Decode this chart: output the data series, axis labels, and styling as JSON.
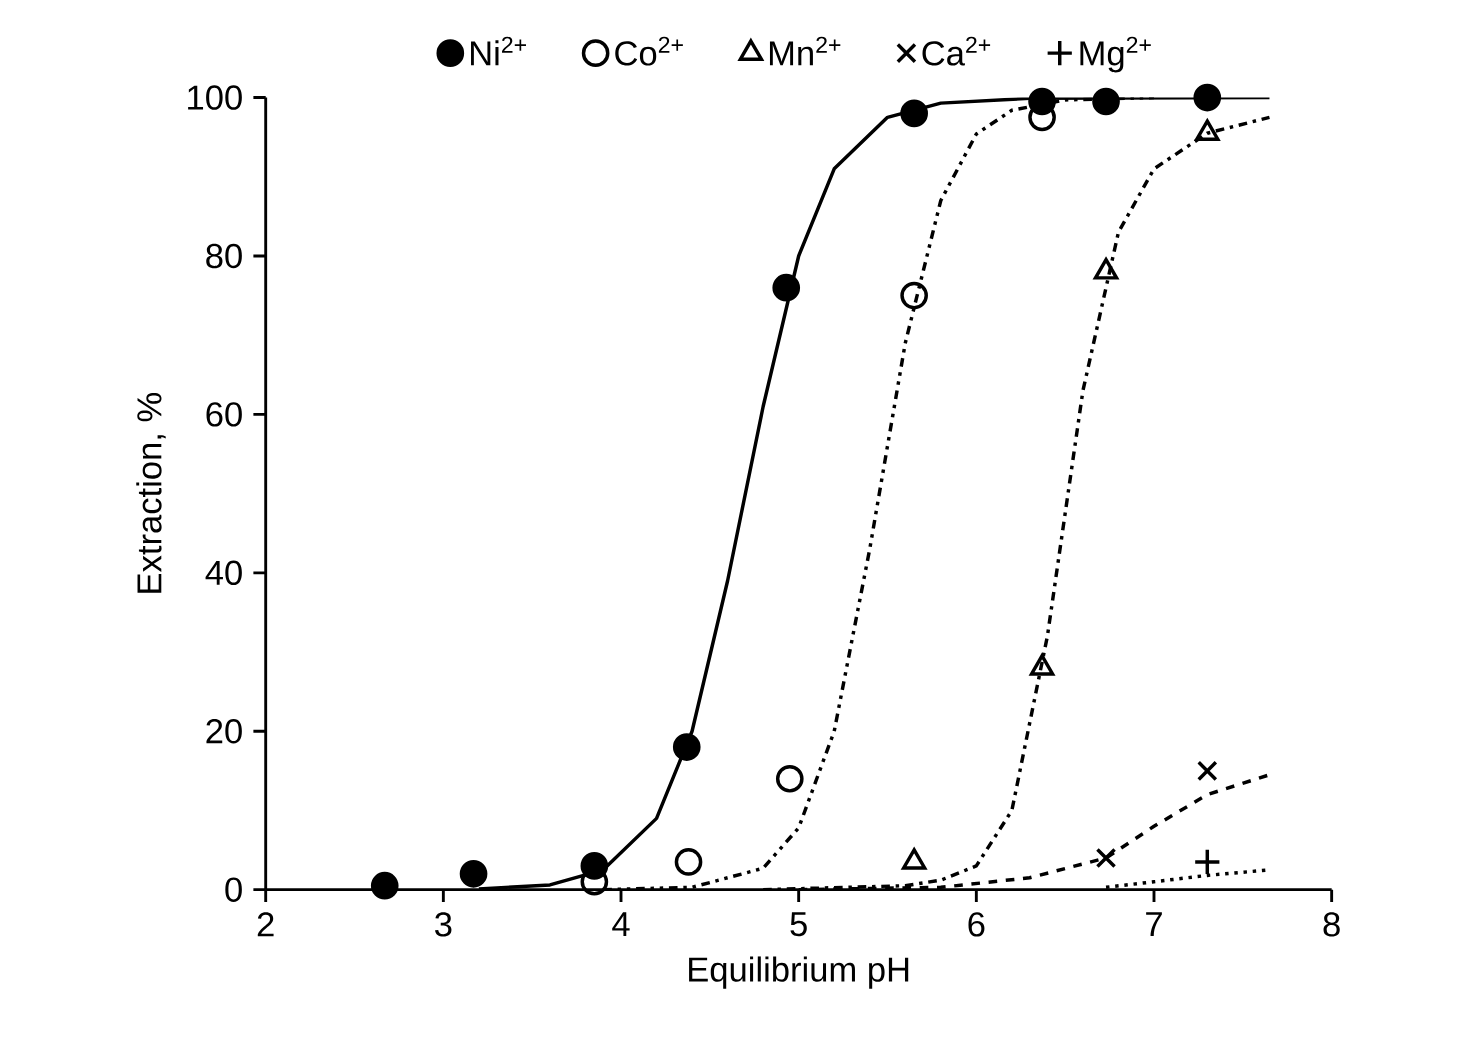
{
  "chart_data": {
    "type": "scatter",
    "xlabel": "Equilibrium pH",
    "ylabel": "Extraction, %",
    "xlim": [
      2,
      8
    ],
    "ylim": [
      0,
      100
    ],
    "xticks": [
      2,
      3,
      4,
      5,
      6,
      7,
      8
    ],
    "yticks": [
      0,
      20,
      40,
      60,
      80,
      100
    ],
    "grid": false,
    "legend": "top",
    "series": [
      {
        "name": "Ni$^{2+}$",
        "color": "#000000",
        "marker": "circle",
        "x": [
          2.67,
          3.17,
          3.85,
          4.37,
          4.93,
          5.65,
          6.37,
          6.73,
          7.3
        ],
        "values": [
          0.5,
          2,
          3,
          18,
          76,
          98,
          99.5,
          99.5,
          100
        ]
      },
      {
        "name": "Co$^{2+}$",
        "color": "#000000",
        "marker": "open circle",
        "x": [
          3.85,
          4.38,
          4.95,
          5.65,
          6.37
        ],
        "values": [
          1,
          3.5,
          14,
          75,
          97.5
        ]
      },
      {
        "name": "Mn$^{2+}$",
        "color": "#000000",
        "marker": "triangle",
        "x": [
          5.65,
          6.37,
          6.73,
          7.3
        ],
        "values": [
          3.5,
          28,
          78,
          95.5
        ]
      },
      {
        "name": "Ca$^{2+}$",
        "color": "#000000",
        "marker": "cross",
        "x": [
          6.73,
          7.3
        ],
        "values": [
          4,
          15
        ]
      },
      {
        "name": "Mg$^{2+}$",
        "color": "#000000",
        "marker": "plus",
        "x": [
          7.3
        ],
        "values": [
          3.5
        ]
      },
      {
        "type": "line",
        "color": "#000000",
        "line_style": "solid",
        "marker": "none",
        "x": [
          3.2,
          3.6,
          3.9,
          4.2,
          4.4,
          4.6,
          4.8,
          5.0,
          5.2,
          5.5,
          5.8,
          6.3,
          7.65
        ],
        "values": [
          0.1,
          0.6,
          2.5,
          9,
          20,
          39,
          61,
          80,
          91,
          97.5,
          99.3,
          99.9,
          100
        ]
      },
      {
        "type": "line",
        "color": "#000000",
        "line_style": "dashdotdotted",
        "marker": "none",
        "x": [
          3.9,
          4.4,
          4.8,
          5.0,
          5.2,
          5.4,
          5.6,
          5.8,
          6.0,
          6.2,
          6.5,
          7.0
        ],
        "values": [
          0,
          0.3,
          2.7,
          7.8,
          20,
          43,
          69,
          87,
          95.4,
          98.4,
          99.7,
          100
        ]
      },
      {
        "type": "line",
        "color": "#000000",
        "line_style": "dashdotted",
        "marker": "none",
        "x": [
          4.8,
          5.6,
          5.8,
          6.0,
          6.2,
          6.4,
          6.6,
          6.8,
          7.0,
          7.3,
          7.65
        ],
        "values": [
          0,
          0.5,
          1.2,
          3,
          10,
          32,
          63,
          83,
          91,
          95.5,
          97.5
        ]
      },
      {
        "type": "line",
        "color": "#000000",
        "line_style": "dashed",
        "marker": "none",
        "x": [
          5.0,
          5.8,
          6.3,
          6.73,
          7.0,
          7.3,
          7.65
        ],
        "values": [
          0,
          0.3,
          1.5,
          4,
          8,
          12,
          14.5
        ]
      },
      {
        "type": "line",
        "color": "#000000",
        "line_style": "dotted",
        "marker": "none",
        "x": [
          6.73,
          7.0,
          7.3,
          7.65
        ],
        "values": [
          0.3,
          1,
          1.8,
          2.5
        ]
      }
    ]
  }
}
